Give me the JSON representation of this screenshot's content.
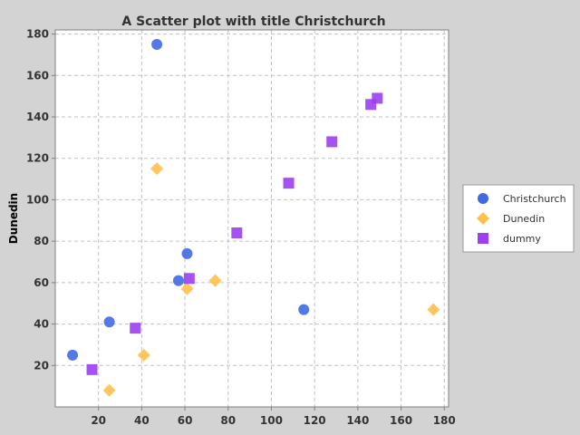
{
  "chart_data": {
    "type": "scatter",
    "title": "A Scatter plot with title Christchurch",
    "xlabel": "",
    "ylabel": "Dunedin",
    "xlim": [
      0,
      182
    ],
    "ylim": [
      0,
      182
    ],
    "x_ticks": [
      20,
      40,
      60,
      80,
      100,
      120,
      140,
      160,
      180
    ],
    "y_ticks": [
      20,
      40,
      60,
      80,
      100,
      120,
      140,
      160,
      180
    ],
    "grid": true,
    "legend_position": "right",
    "series": [
      {
        "name": "Christchurch",
        "marker": "circle",
        "color": "#4169e1",
        "points": [
          [
            8,
            25
          ],
          [
            25,
            41
          ],
          [
            47,
            175
          ],
          [
            57,
            61
          ],
          [
            61,
            74
          ],
          [
            115,
            47
          ]
        ]
      },
      {
        "name": "Dunedin",
        "marker": "diamond",
        "color": "#ffc04c",
        "points": [
          [
            25,
            8
          ],
          [
            41,
            25
          ],
          [
            47,
            115
          ],
          [
            61,
            57
          ],
          [
            74,
            61
          ],
          [
            175,
            47
          ]
        ]
      },
      {
        "name": "dummy",
        "marker": "square",
        "color": "#9b3ff0",
        "points": [
          [
            17,
            18
          ],
          [
            37,
            38
          ],
          [
            62,
            62
          ],
          [
            84,
            84
          ],
          [
            108,
            108
          ],
          [
            128,
            128
          ],
          [
            146,
            146
          ],
          [
            149,
            149
          ]
        ]
      }
    ]
  }
}
